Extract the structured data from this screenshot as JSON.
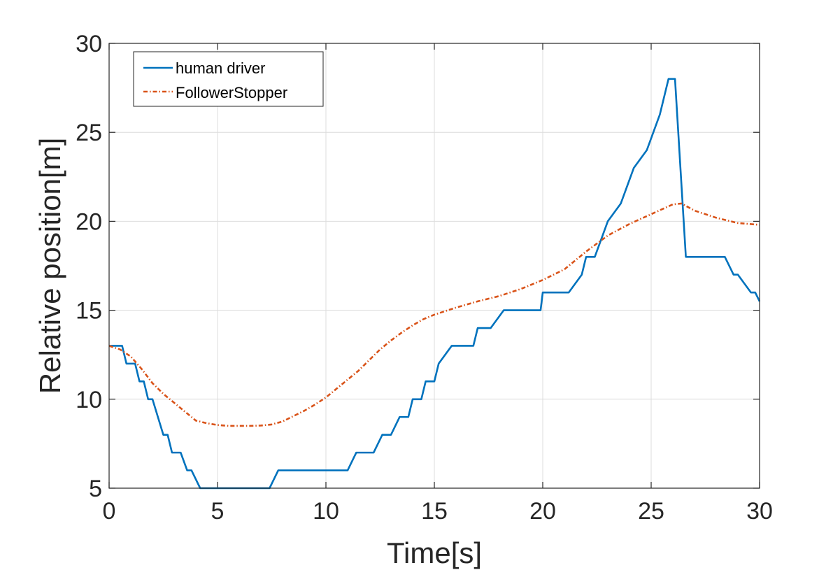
{
  "chart_data": {
    "type": "line",
    "xlabel": "Time[s]",
    "ylabel": "Relative position[m]",
    "xlim": [
      0,
      30
    ],
    "ylim": [
      5,
      30
    ],
    "xticks": [
      0,
      5,
      10,
      15,
      20,
      25,
      30
    ],
    "yticks": [
      5,
      10,
      15,
      20,
      25,
      30
    ],
    "xtick_labels": [
      "0",
      "5",
      "10",
      "15",
      "20",
      "25",
      "30"
    ],
    "ytick_labels": [
      "5",
      "10",
      "15",
      "20",
      "25",
      "30"
    ],
    "grid": true,
    "legend_position": "top-left",
    "series": [
      {
        "name": "human driver",
        "color": "#0072BD",
        "style": "solid",
        "x": [
          0,
          0.6,
          0.8,
          1.2,
          1.4,
          1.6,
          1.8,
          2.0,
          2.5,
          2.7,
          2.9,
          3.3,
          3.6,
          3.8,
          4.2,
          7.4,
          7.8,
          11.0,
          11.4,
          12.2,
          12.6,
          13.0,
          13.4,
          13.8,
          14.0,
          14.4,
          14.6,
          15.0,
          15.2,
          15.8,
          16.8,
          17.0,
          17.6,
          18.2,
          19.9,
          20.0,
          21.2,
          21.8,
          22.0,
          22.4,
          23.0,
          23.6,
          24.2,
          24.8,
          25.4,
          25.8,
          26.1,
          26.6,
          28.4,
          28.8,
          29.0,
          29.6,
          29.8,
          30.0
        ],
        "y": [
          13,
          13,
          12,
          12,
          11,
          11,
          10,
          10,
          8,
          8,
          7,
          7,
          6,
          6,
          5,
          5,
          6,
          6,
          7,
          7,
          8,
          8,
          9,
          9,
          10,
          10,
          11,
          11,
          12,
          13,
          13,
          14,
          14,
          15,
          15,
          16,
          16,
          17,
          18,
          18,
          20,
          21,
          23,
          24,
          26,
          28,
          28,
          18,
          18,
          17,
          17,
          16,
          16,
          15.5
        ]
      },
      {
        "name": "FollowerStopper",
        "color": "#D95319",
        "style": "dashdot",
        "x": [
          0,
          0.5,
          1.0,
          1.5,
          2.0,
          2.5,
          3.0,
          3.5,
          4.0,
          4.5,
          5.0,
          5.5,
          6.0,
          6.5,
          7.0,
          7.5,
          8.0,
          8.5,
          9.0,
          9.5,
          10.0,
          10.5,
          11.0,
          11.5,
          12.0,
          12.5,
          13.0,
          13.5,
          14.0,
          14.5,
          15.0,
          15.5,
          16.0,
          17.0,
          18.0,
          19.0,
          20.0,
          21.0,
          22.0,
          23.0,
          24.0,
          25.0,
          26.0,
          26.4,
          27.0,
          28.0,
          29.0,
          30.0
        ],
        "y": [
          13.0,
          12.8,
          12.4,
          11.7,
          10.9,
          10.3,
          9.8,
          9.3,
          8.8,
          8.65,
          8.55,
          8.5,
          8.5,
          8.5,
          8.52,
          8.58,
          8.75,
          9.05,
          9.35,
          9.7,
          10.1,
          10.6,
          11.1,
          11.6,
          12.2,
          12.8,
          13.3,
          13.75,
          14.15,
          14.5,
          14.75,
          14.95,
          15.15,
          15.5,
          15.8,
          16.2,
          16.7,
          17.3,
          18.3,
          19.2,
          19.85,
          20.4,
          20.95,
          21.0,
          20.6,
          20.2,
          19.9,
          19.8
        ]
      }
    ]
  }
}
